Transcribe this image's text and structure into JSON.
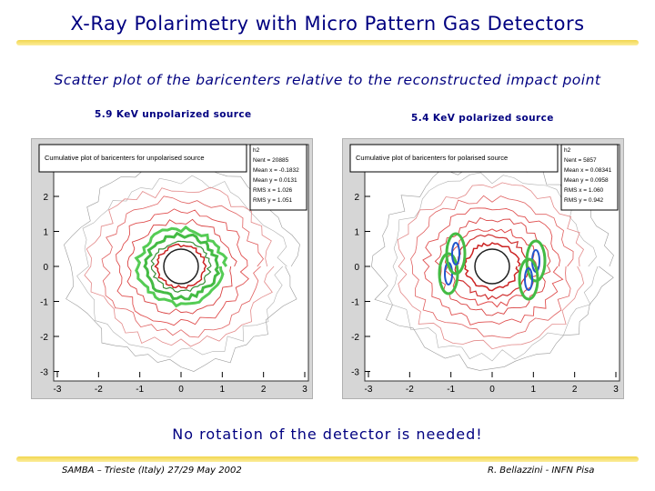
{
  "slide": {
    "title": "X-Ray Polarimetry with Micro Pattern Gas Detectors",
    "subtitle": "Scatter plot of the baricenters relative to the reconstructed impact point",
    "note": "No rotation of the detector is needed!",
    "footer_left": "SAMBA – Trieste (Italy) 27/29 May 2002",
    "footer_right": "R. Bellazzini - INFN Pisa"
  },
  "plots": [
    {
      "label": "5.9 KeV unpolarized source",
      "box_title": "Cumulative plot of baricenters for unpolarised source",
      "stats_name": "h2",
      "stats": [
        "Nent = 20885",
        "Mean x = -0.1832",
        "Mean y = 0.0131",
        "RMS x = 1.026",
        "RMS y = 1.051"
      ],
      "x_ticks": [
        "-3",
        "-2",
        "-1",
        "0",
        "1",
        "2",
        "3"
      ],
      "y_ticks": [
        "2",
        "1",
        "0",
        "-1",
        "-2",
        "-3"
      ]
    },
    {
      "label": "5.4 KeV polarized source",
      "box_title": "Cumulative plot of baricenters for polarised source",
      "stats_name": "h2",
      "stats": [
        "Nent = 5857",
        "Mean x = 0.08341",
        "Mean y = 0.0958",
        "RMS x = 1.060",
        "RMS y = 0.942"
      ],
      "x_ticks": [
        "-3",
        "-2",
        "-1",
        "0",
        "1",
        "2",
        "3"
      ],
      "y_ticks": [
        "2",
        "1",
        "0",
        "-1",
        "-2",
        "-3"
      ]
    }
  ],
  "colors": {
    "title": "#000080",
    "highlight": "#f0d23c",
    "frame": "#d6d6d6"
  }
}
